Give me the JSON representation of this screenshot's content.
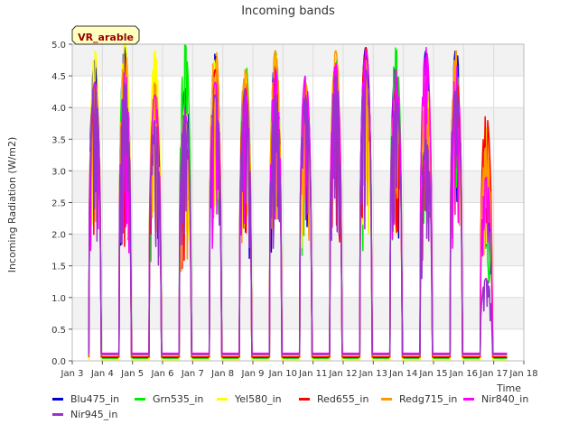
{
  "chart_data": {
    "type": "line",
    "title": "Incoming bands",
    "xlabel": "Time",
    "ylabel": "Incoming Radiation (W/m2)",
    "ylim": [
      0,
      5
    ],
    "y_ticks": [
      "0.0",
      "0.5",
      "1.0",
      "1.5",
      "2.0",
      "2.5",
      "3.0",
      "3.5",
      "4.0",
      "4.5",
      "5.0"
    ],
    "xlim": [
      3,
      18
    ],
    "x_ticks": [
      "Jan 3",
      "Jan 4",
      "Jan 5",
      "Jan 6",
      "Jan 7",
      "Jan 8",
      "Jan 9",
      "Jan 10",
      "Jan 11",
      "Jan 12",
      "Jan 13",
      "Jan 14",
      "Jan 15",
      "Jan 16",
      "Jan 17",
      "Jan 18"
    ],
    "annotation": "VR_arable",
    "grid": true,
    "legend_position": "bottom",
    "day_peaks": [
      {
        "day": 3.75,
        "values": [
          4.75,
          4.4,
          4.9,
          4.4,
          4.4,
          4.4,
          4.4
        ]
      },
      {
        "day": 4.75,
        "values": [
          5.0,
          5.0,
          5.0,
          4.0,
          4.9,
          4.6,
          4.4
        ]
      },
      {
        "day": 5.75,
        "values": [
          4.5,
          4.3,
          4.9,
          4.2,
          4.4,
          4.2,
          3.8
        ]
      },
      {
        "day": 6.75,
        "values": [
          4.3,
          5.0,
          4.0,
          3.5,
          3.5,
          3.9,
          4.0
        ]
      },
      {
        "day": 7.75,
        "values": [
          4.85,
          4.7,
          4.8,
          4.6,
          5.0,
          4.4,
          4.2
        ]
      },
      {
        "day": 8.75,
        "values": [
          4.4,
          4.75,
          4.5,
          4.5,
          4.6,
          4.3,
          4.3
        ]
      },
      {
        "day": 9.75,
        "values": [
          4.85,
          4.9,
          4.85,
          4.65,
          4.9,
          4.6,
          4.2
        ]
      },
      {
        "day": 10.75,
        "values": [
          4.5,
          4.4,
          4.4,
          4.2,
          4.4,
          4.5,
          4.2
        ]
      },
      {
        "day": 11.75,
        "values": [
          4.5,
          4.75,
          4.8,
          4.7,
          4.9,
          4.7,
          4.5
        ]
      },
      {
        "day": 12.75,
        "values": [
          4.95,
          4.3,
          4.7,
          4.95,
          4.75,
          4.9,
          4.6
        ]
      },
      {
        "day": 13.75,
        "values": [
          4.65,
          4.95,
          4.3,
          4.3,
          4.25,
          4.6,
          4.2
        ]
      },
      {
        "day": 14.75,
        "values": [
          4.9,
          4.5,
          4.5,
          3.5,
          4.4,
          4.95,
          3.5
        ]
      },
      {
        "day": 15.75,
        "values": [
          4.95,
          4.4,
          4.6,
          4.6,
          4.9,
          4.7,
          4.3
        ]
      },
      {
        "day": 16.75,
        "values": [
          3.3,
          2.6,
          3.7,
          3.9,
          3.4,
          2.9,
          1.3
        ]
      }
    ],
    "series": [
      {
        "name": "Blu475_in",
        "color": "#0000cc",
        "baseline": 0.05
      },
      {
        "name": "Grn535_in",
        "color": "#00ee00",
        "baseline": 0.03
      },
      {
        "name": "Yel580_in",
        "color": "#ffff00",
        "baseline": 0.02
      },
      {
        "name": "Red655_in",
        "color": "#ff0000",
        "baseline": 0.06
      },
      {
        "name": "Redg715_in",
        "color": "#ff9900",
        "baseline": 0.09
      },
      {
        "name": "Nir840_in",
        "color": "#ff00ff",
        "baseline": 0.12
      },
      {
        "name": "Nir945_in",
        "color": "#9932cc",
        "baseline": 0.1
      }
    ]
  }
}
